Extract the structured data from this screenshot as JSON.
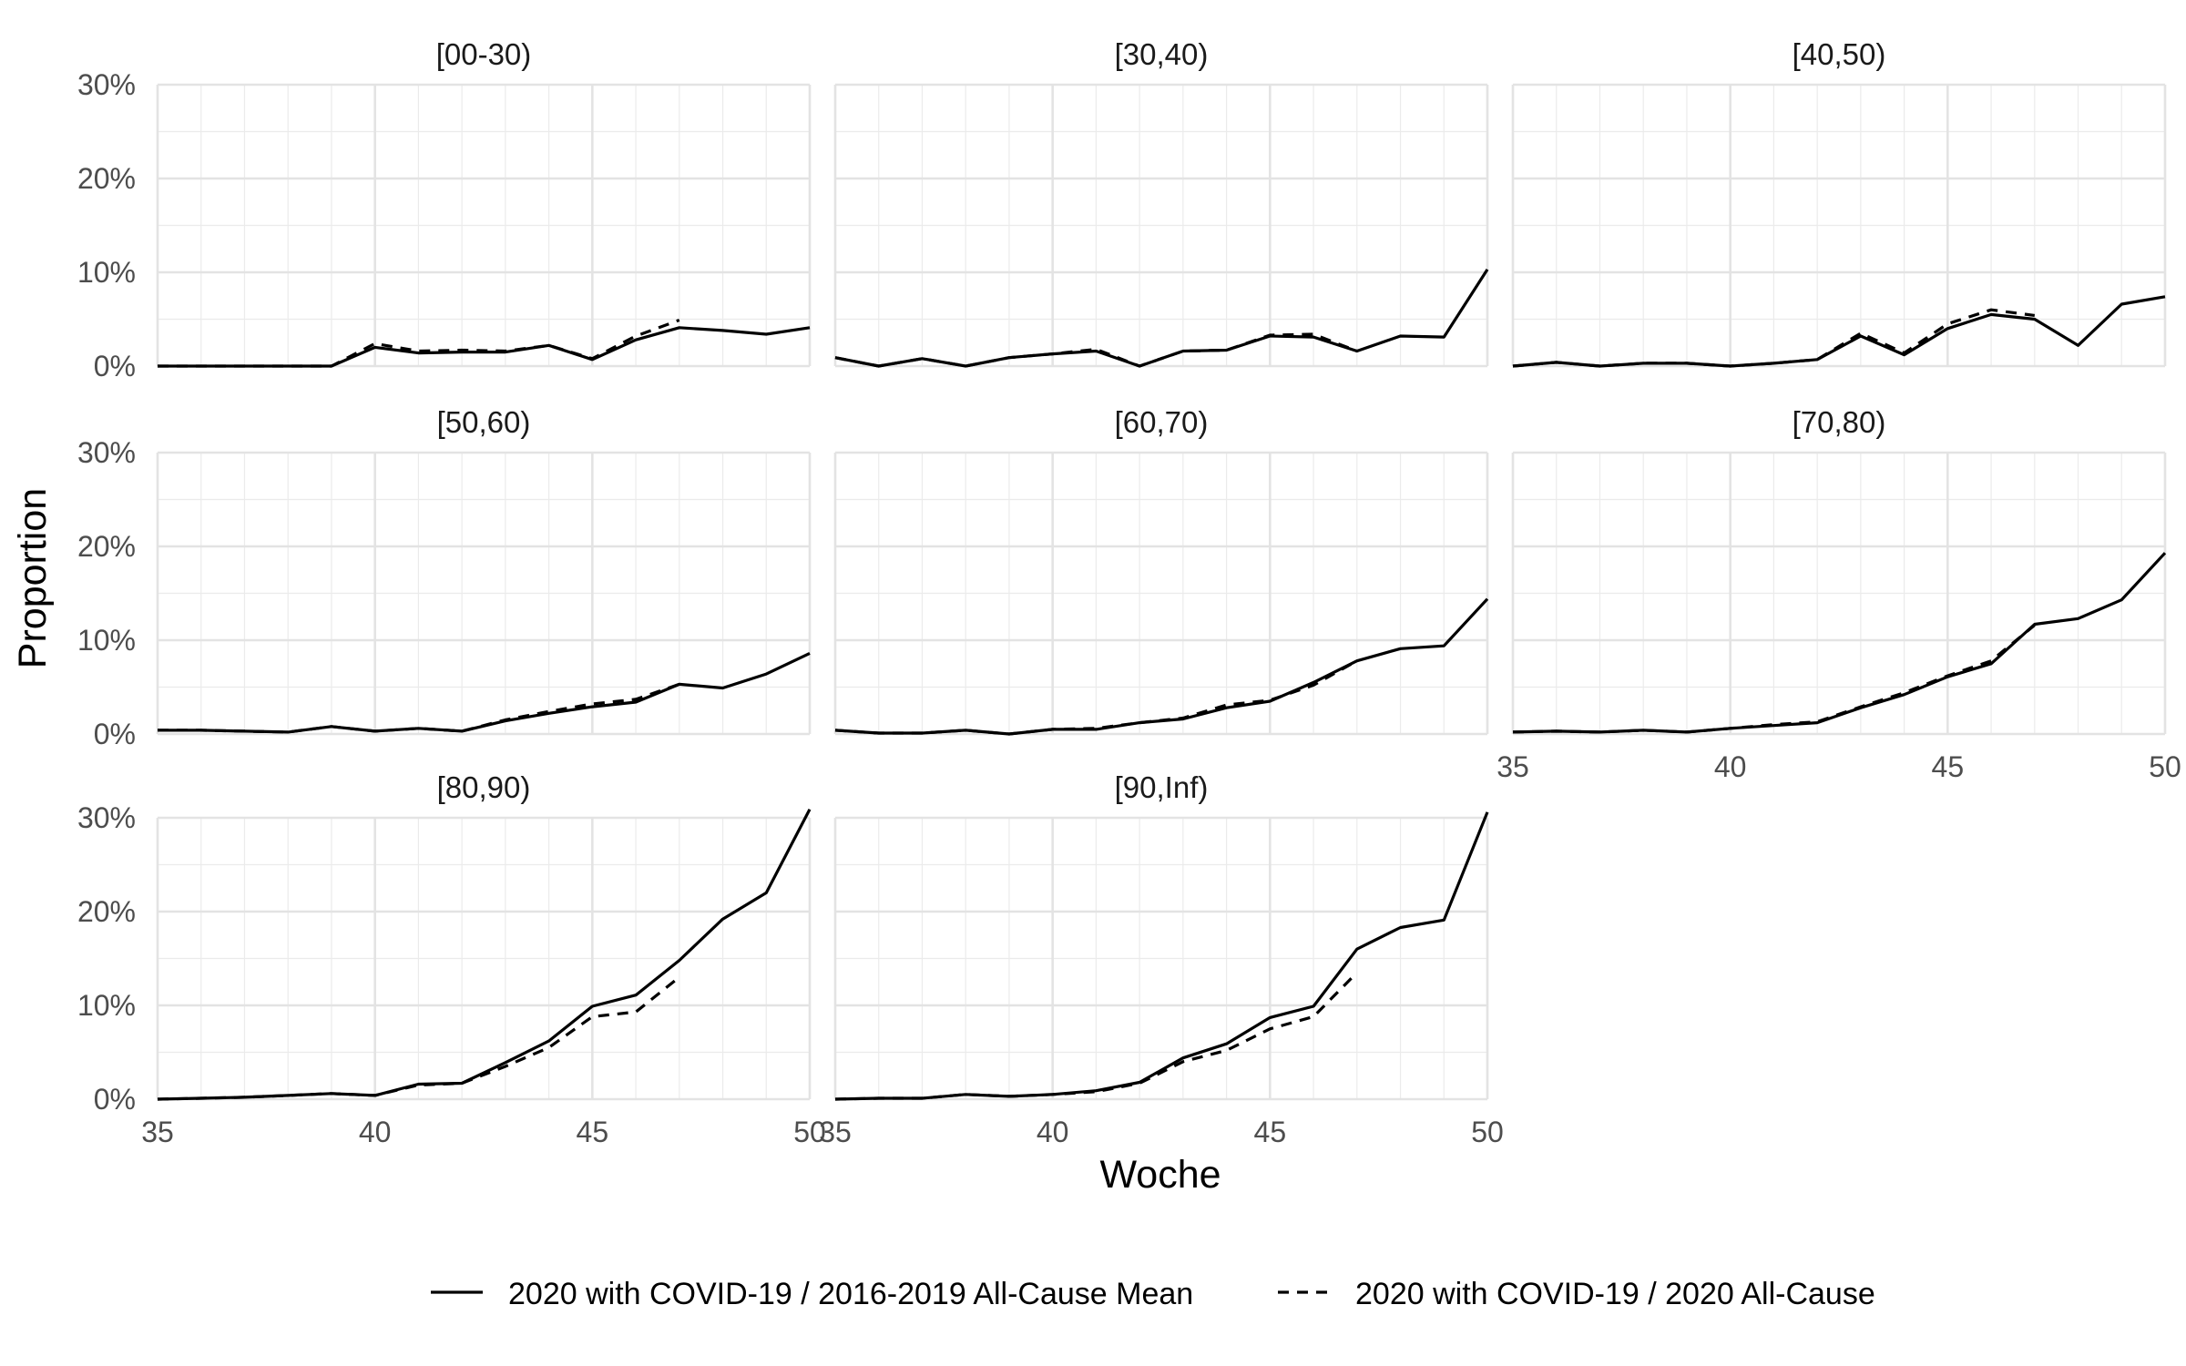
{
  "chart_data": {
    "type": "line",
    "facet_layout": "3 columns, 3 rows",
    "xlabel": "Woche",
    "ylabel": "Proportion",
    "xlim": [
      35,
      50
    ],
    "ylim": [
      0,
      0.3
    ],
    "x_ticks": [
      35,
      40,
      45,
      50
    ],
    "y_ticks": [
      0,
      0.1,
      0.2,
      0.3
    ],
    "y_tick_labels": [
      "0%",
      "10%",
      "20%",
      "30%"
    ],
    "x_tick_labels": [
      "35",
      "40",
      "45",
      "50"
    ],
    "grid": true,
    "legend_position": "bottom",
    "legend": [
      {
        "name": "2020 with COVID-19 / 2016-2019 All-Cause Mean",
        "linetype": "solid"
      },
      {
        "name": "2020 with COVID-19 / 2020 All-Cause",
        "linetype": "dashed"
      }
    ],
    "x": [
      35,
      36,
      37,
      38,
      39,
      40,
      41,
      42,
      43,
      44,
      45,
      46,
      47,
      48,
      49,
      50
    ],
    "panels": [
      {
        "label": "[00-30)",
        "series": [
          {
            "values": [
              0.0,
              0.0,
              0.0,
              0.0,
              0.0,
              0.02,
              0.014,
              0.015,
              0.015,
              0.022,
              0.007,
              0.028,
              0.041,
              0.038,
              0.034,
              0.041
            ]
          },
          {
            "values": [
              0.0,
              0.0,
              0.0,
              0.0,
              0.0,
              0.024,
              0.016,
              0.017,
              0.016,
              0.022,
              0.008,
              0.032,
              0.049,
              null,
              null,
              null
            ]
          }
        ]
      },
      {
        "label": "[30,40)",
        "series": [
          {
            "values": [
              0.009,
              0.0,
              0.008,
              0.0,
              0.009,
              0.013,
              0.016,
              0.0,
              0.016,
              0.017,
              0.032,
              0.031,
              0.016,
              0.032,
              0.031,
              0.103
            ]
          },
          {
            "values": [
              0.009,
              0.0,
              0.008,
              0.0,
              0.009,
              0.013,
              0.018,
              0.0,
              0.016,
              0.017,
              0.033,
              0.034,
              0.016,
              null,
              null,
              null
            ]
          }
        ]
      },
      {
        "label": "[40,50)",
        "series": [
          {
            "values": [
              0.0,
              0.004,
              0.0,
              0.003,
              0.003,
              0.0,
              0.003,
              0.007,
              0.032,
              0.012,
              0.04,
              0.055,
              0.05,
              0.022,
              0.066,
              0.074
            ]
          },
          {
            "values": [
              0.0,
              0.004,
              0.0,
              0.003,
              0.003,
              0.0,
              0.003,
              0.007,
              0.035,
              0.014,
              0.045,
              0.06,
              0.054,
              null,
              null,
              null
            ]
          }
        ]
      },
      {
        "label": "[50,60)",
        "series": [
          {
            "values": [
              0.004,
              0.004,
              0.003,
              0.002,
              0.008,
              0.003,
              0.006,
              0.003,
              0.014,
              0.022,
              0.029,
              0.034,
              0.053,
              0.049,
              0.064,
              0.086
            ]
          },
          {
            "values": [
              0.004,
              0.004,
              0.003,
              0.002,
              0.008,
              0.003,
              0.006,
              0.003,
              0.015,
              0.024,
              0.032,
              0.037,
              0.053,
              null,
              null,
              null
            ]
          }
        ]
      },
      {
        "label": "[60,70)",
        "series": [
          {
            "values": [
              0.004,
              0.001,
              0.001,
              0.004,
              0.0,
              0.005,
              0.005,
              0.012,
              0.016,
              0.028,
              0.035,
              0.055,
              0.078,
              0.091,
              0.094,
              0.144
            ]
          },
          {
            "values": [
              0.004,
              0.001,
              0.001,
              0.004,
              0.0,
              0.005,
              0.006,
              0.012,
              0.017,
              0.031,
              0.036,
              0.052,
              0.078,
              null,
              null,
              null
            ]
          }
        ]
      },
      {
        "label": "[70,80)",
        "series": [
          {
            "values": [
              0.002,
              0.003,
              0.002,
              0.004,
              0.002,
              0.006,
              0.009,
              0.012,
              0.028,
              0.042,
              0.061,
              0.075,
              0.117,
              0.123,
              0.143,
              0.193
            ]
          },
          {
            "values": [
              0.002,
              0.003,
              0.002,
              0.004,
              0.002,
              0.006,
              0.01,
              0.013,
              0.029,
              0.044,
              0.062,
              0.078,
              0.116,
              null,
              null,
              null
            ]
          }
        ]
      },
      {
        "label": "[80,90)",
        "series": [
          {
            "values": [
              0.0,
              0.001,
              0.002,
              0.004,
              0.006,
              0.004,
              0.016,
              0.017,
              0.039,
              0.062,
              0.099,
              0.111,
              0.148,
              0.192,
              0.22,
              0.309
            ]
          },
          {
            "values": [
              0.0,
              0.001,
              0.002,
              0.004,
              0.006,
              0.004,
              0.015,
              0.017,
              0.035,
              0.055,
              0.088,
              0.093,
              0.13,
              null,
              null,
              null
            ]
          }
        ]
      },
      {
        "label": "[90,Inf)",
        "series": [
          {
            "values": [
              0.0,
              0.001,
              0.001,
              0.005,
              0.003,
              0.005,
              0.009,
              0.018,
              0.044,
              0.059,
              0.087,
              0.099,
              0.16,
              0.183,
              0.191,
              0.306
            ]
          },
          {
            "values": [
              0.0,
              0.001,
              0.001,
              0.005,
              0.003,
              0.005,
              0.008,
              0.017,
              0.04,
              0.052,
              0.075,
              0.088,
              0.135,
              null,
              null,
              null
            ]
          }
        ]
      }
    ]
  }
}
